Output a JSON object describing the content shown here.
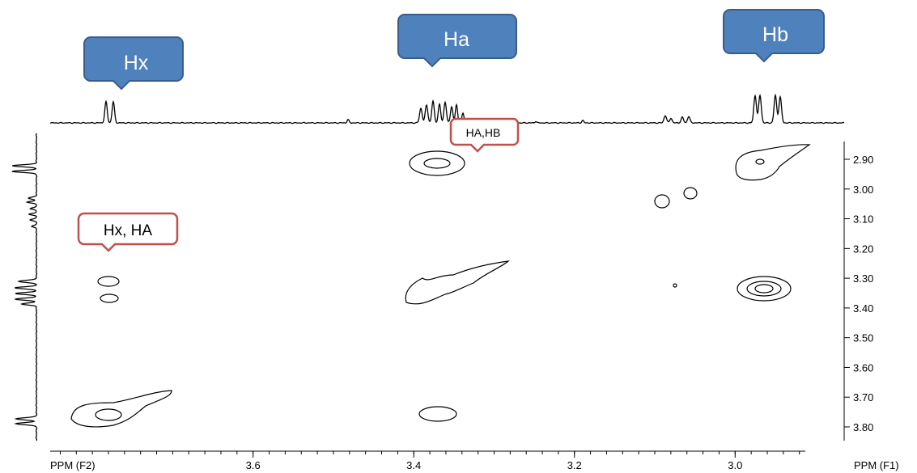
{
  "chart_data": {
    "type": "contour",
    "subtype": "2D COSY NMR spectrum",
    "x_axis": {
      "label": "PPM (F2)",
      "ticks": [
        "3.6",
        "3.4",
        "3.2",
        "3.0"
      ],
      "tick_values": [
        3.6,
        3.4,
        3.2,
        3.0
      ],
      "range": [
        3.84,
        2.86
      ],
      "reversed": true
    },
    "y_axis": {
      "label": "PPM (F1)",
      "side": "right",
      "ticks": [
        "2.90",
        "3.00",
        "3.10",
        "3.20",
        "3.30",
        "3.40",
        "3.50",
        "3.60",
        "3.70",
        "3.80"
      ],
      "tick_values": [
        2.9,
        3.0,
        3.1,
        3.2,
        3.3,
        3.4,
        3.5,
        3.6,
        3.7,
        3.8
      ],
      "range": [
        2.86,
        3.84
      ]
    },
    "grid": false,
    "peaks_1d": [
      {
        "label": "Hx",
        "shift": 3.78
      },
      {
        "label": "Ha",
        "shift": 3.37
      },
      {
        "label": "Hb",
        "shift": 2.94
      }
    ],
    "cross_peaks": [
      {
        "label": "Hx, HA",
        "x": 3.78,
        "y": 3.32
      },
      {
        "label": "Hx, HA",
        "x": 3.78,
        "y": 3.37
      },
      {
        "label": "HA,HB",
        "x": 3.37,
        "y": 2.93
      },
      {
        "label": "",
        "x": 3.37,
        "y": 3.78
      },
      {
        "label": "",
        "x": 3.07,
        "y": 3.05
      },
      {
        "label": "",
        "x": 3.04,
        "y": 3.02
      }
    ],
    "diagonal_peaks": [
      {
        "x": 3.78,
        "y": 3.78
      },
      {
        "x": 3.37,
        "y": 3.34
      },
      {
        "x": 2.94,
        "y": 2.93
      }
    ]
  },
  "callouts": {
    "hx": "Hx",
    "ha": "Ha",
    "hb": "Hb",
    "cross_hx_ha": "Hx, HA",
    "cross_ha_hb": "HA,HB"
  },
  "colors": {
    "callout_blue": "#4f81bd",
    "callout_blue_border": "#385d8a",
    "callout_red_border": "#c0504d",
    "trace": "#000000"
  }
}
